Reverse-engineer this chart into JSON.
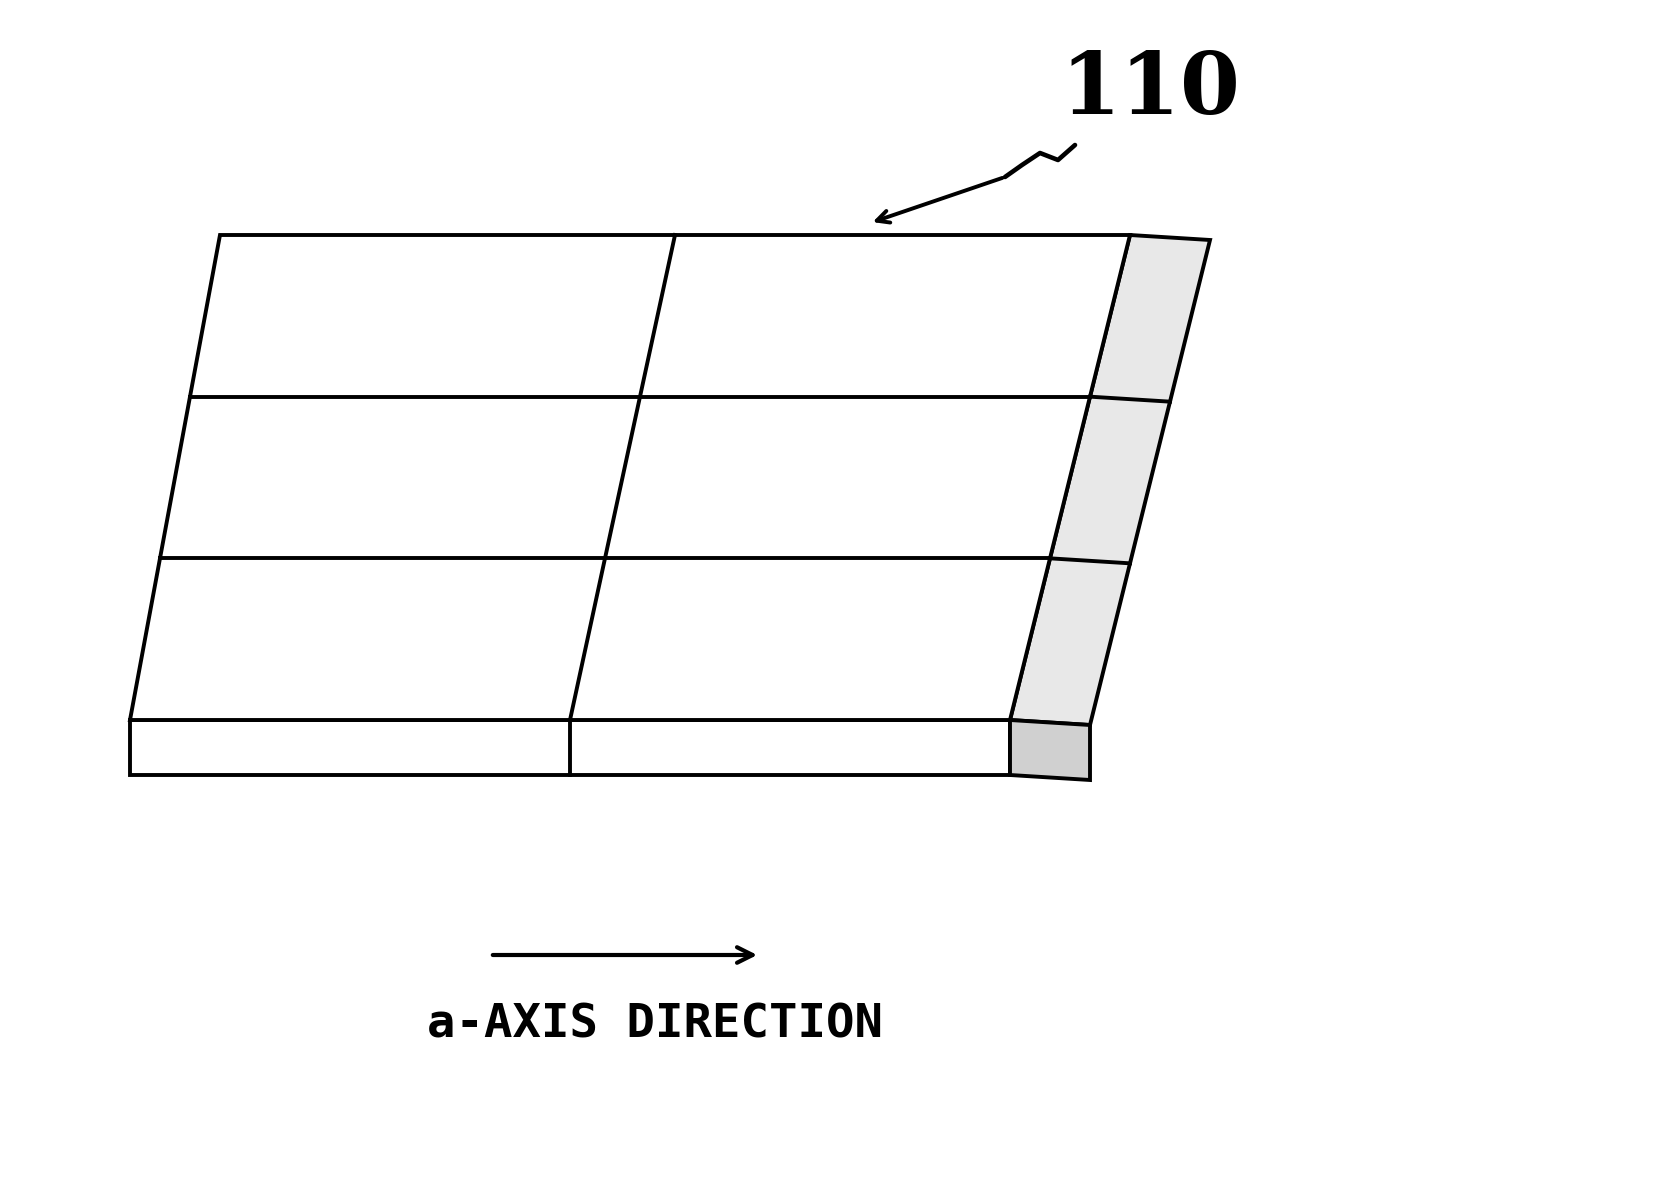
{
  "background_color": "#ffffff",
  "label_110": "110",
  "label_axis": "a-AXIS DIRECTION",
  "line_color": "#000000",
  "line_width": 2.8,
  "fig_width": 16.67,
  "fig_height": 11.85,
  "dpi": 100
}
